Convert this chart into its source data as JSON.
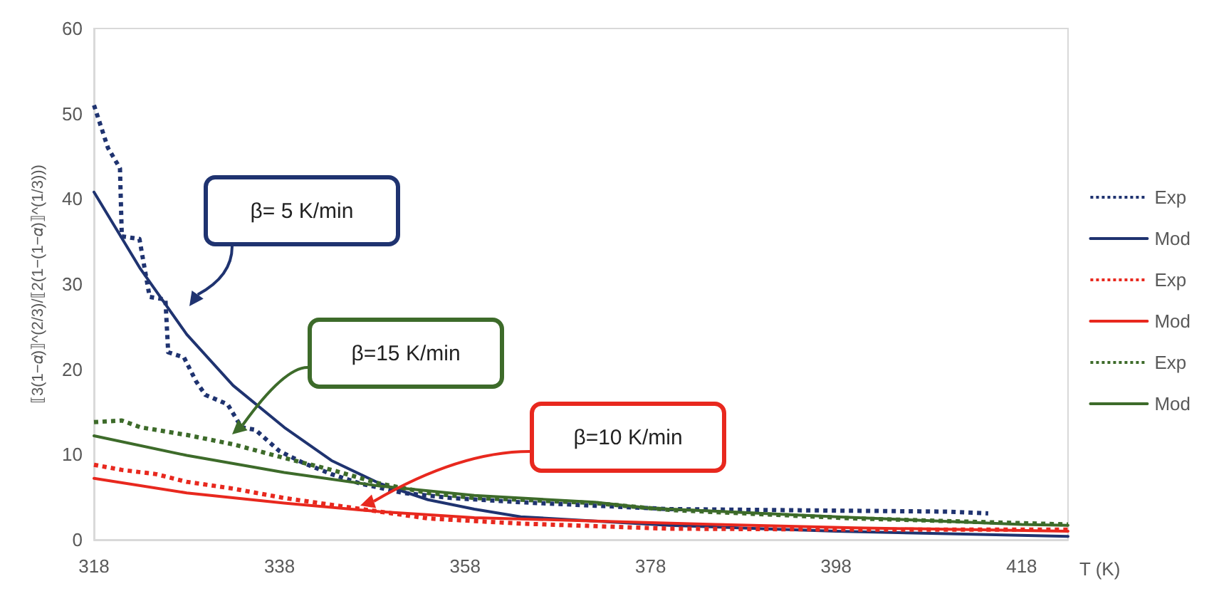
{
  "chart_data": {
    "type": "line",
    "xlabel": "T (K)",
    "ylabel": "⟦3(1−𝛼)⟧^(2/3)/⟦2(1−(1−𝛼)⟧^(1/3)))",
    "xlim": [
      318,
      423
    ],
    "xticks": [
      318,
      338,
      358,
      378,
      398,
      418
    ],
    "ylim": [
      0,
      60
    ],
    "yticks": [
      0,
      10,
      20,
      30,
      40,
      50,
      60
    ],
    "grid": false,
    "legend": "right",
    "marker": "none",
    "series": [
      {
        "name": "Exp",
        "color": "#1f3370",
        "line_style": "dotted",
        "x": [
          318,
          319.5,
          320.8,
          321,
          322.9,
          324,
          325.7,
          326,
          327.7,
          329,
          330,
          332.4,
          333.9,
          335.4,
          338,
          340.6,
          343.6,
          346.7,
          351.3,
          356.5,
          364,
          372,
          380,
          390,
          400,
          410,
          414.4
        ],
        "values": [
          51,
          46,
          43.6,
          35.6,
          35.3,
          28.5,
          28.2,
          22,
          21.4,
          18.6,
          17,
          15.9,
          13.2,
          12.9,
          10.4,
          9,
          7.7,
          6.6,
          5.5,
          4.9,
          4.4,
          4,
          3.6,
          3.5,
          3.4,
          3.3,
          3.1
        ]
      },
      {
        "name": "Mod",
        "color": "#1f3370",
        "line_style": "solid",
        "x": [
          318,
          323,
          328,
          333,
          338.5,
          343.6,
          348.8,
          354,
          359,
          364,
          372,
          380,
          390,
          398,
          410,
          423
        ],
        "values": [
          40.8,
          31.8,
          24.1,
          18.1,
          13.2,
          9.3,
          6.6,
          4.7,
          3.6,
          2.7,
          2.2,
          1.7,
          1.3,
          1,
          0.7,
          0.4
        ]
      },
      {
        "name": "Exp",
        "color": "#e8281e",
        "line_style": "dotted",
        "x": [
          318,
          321,
          324.7,
          328,
          333,
          338.5,
          343.6,
          348.8,
          354,
          359,
          364,
          372,
          380,
          400,
          423
        ],
        "values": [
          8.8,
          8.2,
          7.7,
          6.8,
          6,
          4.9,
          4.1,
          3.3,
          2.5,
          2.2,
          1.9,
          1.6,
          1.3,
          1.2,
          1.2
        ]
      },
      {
        "name": "Mod",
        "color": "#e8281e",
        "line_style": "solid",
        "x": [
          318,
          328,
          338.5,
          348.8,
          359,
          372,
          385,
          400,
          423
        ],
        "values": [
          7.2,
          5.5,
          4.3,
          3.3,
          2.6,
          2.2,
          1.8,
          1.4,
          1
        ]
      },
      {
        "name": "Exp",
        "color": "#3d6b2a",
        "line_style": "dotted",
        "x": [
          318,
          321,
          323,
          328,
          333,
          338.5,
          343.6,
          348.8,
          354,
          359,
          364,
          372,
          380,
          400,
          423
        ],
        "values": [
          13.8,
          14,
          13.2,
          12.3,
          11.2,
          9.6,
          8.2,
          6.6,
          5.5,
          4.9,
          4.7,
          4.3,
          3.5,
          2.5,
          1.8
        ]
      },
      {
        "name": "Mod",
        "color": "#3d6b2a",
        "line_style": "solid",
        "x": [
          318,
          328,
          338.5,
          348.8,
          359,
          372,
          378,
          398,
          418,
          423
        ],
        "values": [
          12.2,
          9.9,
          7.9,
          6.3,
          5.2,
          4.4,
          3.7,
          2.7,
          1.8,
          1.7
        ]
      }
    ],
    "annotations": [
      "β= 5 K/min",
      "β=10 K/min",
      "β=15 K/min"
    ]
  }
}
